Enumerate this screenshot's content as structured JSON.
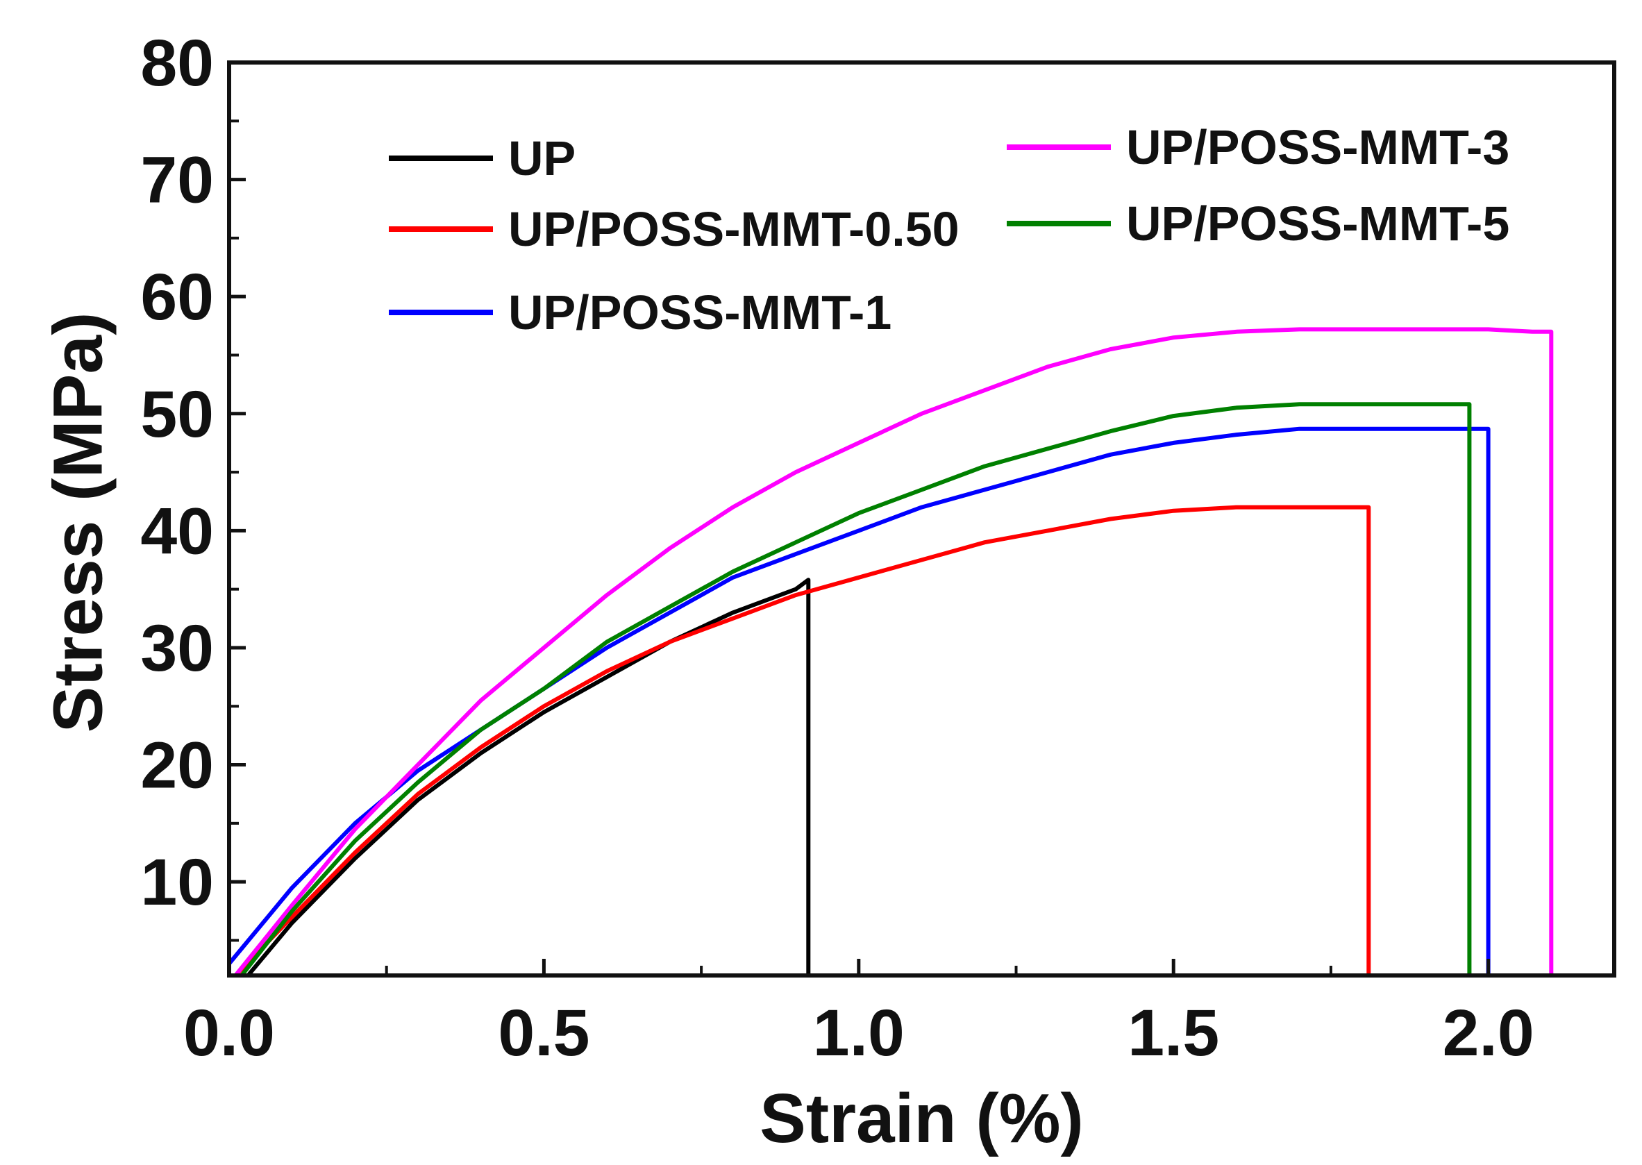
{
  "chart_data": {
    "type": "line",
    "title": "",
    "xlabel": "Strain (%)",
    "ylabel": "Stress (MPa)",
    "xlim": [
      0,
      2.2
    ],
    "ylim": [
      2,
      80
    ],
    "xticks": [
      0.0,
      0.5,
      1.0,
      1.5,
      2.0
    ],
    "xtick_labels": [
      "0.0",
      "0.5",
      "1.0",
      "1.5",
      "2.0"
    ],
    "yticks": [
      10,
      20,
      30,
      40,
      50,
      60,
      70,
      80
    ],
    "ytick_labels": [
      "10",
      "20",
      "30",
      "40",
      "50",
      "60",
      "70",
      "80"
    ],
    "legend_position": "top-left",
    "series": [
      {
        "name": "UP",
        "color": "#000000",
        "x": [
          0.03,
          0.1,
          0.2,
          0.3,
          0.4,
          0.5,
          0.6,
          0.7,
          0.8,
          0.9,
          0.92,
          0.92
        ],
        "y": [
          2,
          6.5,
          12,
          17,
          21,
          24.5,
          27.5,
          30.5,
          33,
          35,
          35.8,
          2
        ]
      },
      {
        "name": "UP/POSS-MMT-0.50",
        "color": "#ff0000",
        "x": [
          0.01,
          0.1,
          0.2,
          0.3,
          0.4,
          0.5,
          0.6,
          0.7,
          0.8,
          0.9,
          1.0,
          1.1,
          1.2,
          1.3,
          1.4,
          1.5,
          1.6,
          1.7,
          1.8,
          1.81,
          1.81
        ],
        "y": [
          2,
          7,
          12.5,
          17.5,
          21.5,
          25,
          28,
          30.5,
          32.5,
          34.5,
          36,
          37.5,
          39,
          40,
          41,
          41.7,
          42,
          42,
          42,
          42,
          2
        ]
      },
      {
        "name": "UP/POSS-MMT-1",
        "color": "#0000ff",
        "x": [
          0.0,
          0.1,
          0.2,
          0.3,
          0.4,
          0.5,
          0.6,
          0.7,
          0.8,
          0.9,
          1.0,
          1.1,
          1.2,
          1.3,
          1.4,
          1.5,
          1.6,
          1.7,
          1.8,
          1.9,
          2.0,
          2.0
        ],
        "y": [
          3,
          9.5,
          15,
          19.5,
          23,
          26.5,
          30,
          33,
          36,
          38,
          40,
          42,
          43.5,
          45,
          46.5,
          47.5,
          48.2,
          48.7,
          48.7,
          48.7,
          48.7,
          2
        ]
      },
      {
        "name": "UP/POSS-MMT-3",
        "color": "#ff00ff",
        "x": [
          0.01,
          0.1,
          0.2,
          0.3,
          0.4,
          0.5,
          0.6,
          0.7,
          0.8,
          0.9,
          1.0,
          1.1,
          1.2,
          1.3,
          1.4,
          1.5,
          1.6,
          1.7,
          1.8,
          1.9,
          2.0,
          2.07,
          2.1,
          2.1
        ],
        "y": [
          2,
          8,
          14.5,
          20,
          25.5,
          30,
          34.5,
          38.5,
          42,
          45,
          47.5,
          50,
          52,
          54,
          55.5,
          56.5,
          57,
          57.2,
          57.2,
          57.2,
          57.2,
          57,
          57,
          2
        ]
      },
      {
        "name": "UP/POSS-MMT-5",
        "color": "#008000",
        "x": [
          0.02,
          0.1,
          0.2,
          0.3,
          0.4,
          0.5,
          0.6,
          0.7,
          0.8,
          0.9,
          1.0,
          1.1,
          1.2,
          1.3,
          1.4,
          1.5,
          1.6,
          1.7,
          1.8,
          1.9,
          1.97,
          1.97
        ],
        "y": [
          2,
          7.5,
          13.5,
          18.5,
          23,
          26.5,
          30.5,
          33.5,
          36.5,
          39,
          41.5,
          43.5,
          45.5,
          47,
          48.5,
          49.8,
          50.5,
          50.8,
          50.8,
          50.8,
          50.8,
          2
        ]
      }
    ]
  }
}
